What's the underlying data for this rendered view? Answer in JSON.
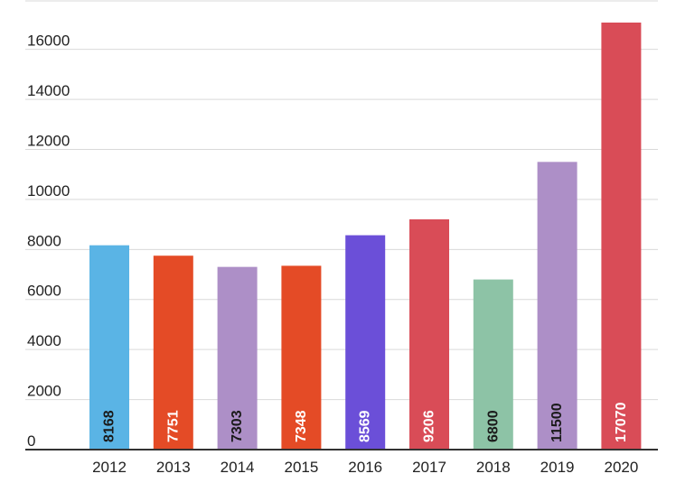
{
  "chart_data": {
    "type": "bar",
    "title": "",
    "xlabel": "",
    "ylabel": "",
    "categories": [
      "2012",
      "2013",
      "2014",
      "2015",
      "2016",
      "2017",
      "2018",
      "2019",
      "2020"
    ],
    "values": [
      8168,
      7751,
      7303,
      7348,
      8569,
      9206,
      6800,
      11500,
      17070
    ],
    "data_labels": [
      "8168",
      "7751",
      "7303",
      "7348",
      "8569",
      "9206",
      "6800",
      "11500",
      "17070"
    ],
    "colors": [
      "#5ab4e5",
      "#e44b26",
      "#ad8fc7",
      "#e44b26",
      "#6b4fd8",
      "#d94c57",
      "#8dc3a6",
      "#ad8fc7",
      "#d94c57"
    ],
    "label_colors": [
      "#1a1a1a",
      "#ffffff",
      "#1a1a1a",
      "#ffffff",
      "#ffffff",
      "#ffffff",
      "#1a1a1a",
      "#1a1a1a",
      "#ffffff"
    ],
    "yticks": [
      0,
      2000,
      4000,
      6000,
      8000,
      10000,
      12000,
      14000,
      16000
    ],
    "ytick_labels": [
      "0",
      "2000",
      "4000",
      "6000",
      "8000",
      "10000",
      "12000",
      "14000",
      "16000"
    ],
    "ylim": [
      0,
      17070
    ],
    "grid": true,
    "legend": "none"
  }
}
